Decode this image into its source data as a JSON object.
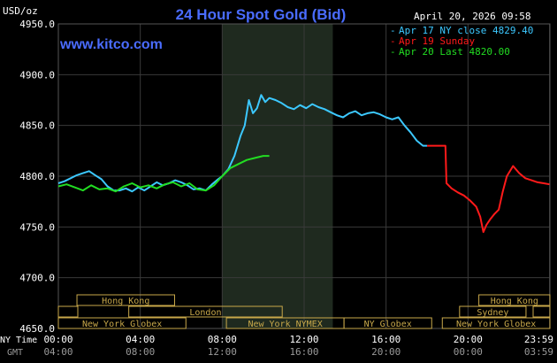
{
  "header": {
    "unit_label": "USD/oz",
    "title": "24 Hour Spot Gold (Bid)",
    "date_time": "April 20, 2026 09:58",
    "watermark": "www.kitco.com"
  },
  "legend": [
    {
      "text": "Apr 17 NY close 4829.40",
      "color": "#3cc8ff"
    },
    {
      "text": "Apr 19 Sunday",
      "color": "#ff1a1a"
    },
    {
      "text": "Apr 20 Last 4820.00",
      "color": "#22dd22"
    }
  ],
  "axis_row_labels": {
    "ny": "NY Time",
    "gmt": "GMT"
  },
  "sessions": [
    {
      "label": "Hong Kong",
      "start": 1.4,
      "end": 8.75
    },
    {
      "label": "London",
      "start": 5.3,
      "end": 16.85
    },
    {
      "label": "New York Globex",
      "start": 0.0,
      "end": 9.6
    },
    {
      "label": "New York NYMEX",
      "start": 12.65,
      "end": 21.5
    },
    {
      "label": "NY Globex",
      "start": 21.5,
      "end": 28.1
    },
    {
      "label": "Hong Kong",
      "start": 31.65,
      "end": 37.0
    },
    {
      "label": "Sydney",
      "start": 30.2,
      "end": 35.2
    },
    {
      "label": "New York Globex",
      "start": 28.9,
      "end": 37.0
    }
  ],
  "colors": {
    "background": "#000000",
    "highlight_band": "#1f2a1f",
    "title": "#4a6cff",
    "grid": "#3a3a3a",
    "session_box": "#c8a84a",
    "axis_text": "#ffffff",
    "gmt_text": "#9a9a9a"
  },
  "chart_data": {
    "type": "line",
    "title": "24 Hour Spot Gold (Bid)",
    "ylabel": "USD/oz",
    "ylim": [
      4650,
      4950
    ],
    "yticks": [
      "4950.0",
      "4900.0",
      "4850.0",
      "4800.0",
      "4750.0",
      "4700.0",
      "4650.0"
    ],
    "yticks_values": [
      4950,
      4900,
      4850,
      4800,
      4750,
      4700,
      4650
    ],
    "xlim": [
      0,
      24
    ],
    "xticks_ny": [
      "00:00",
      "04:00",
      "08:00",
      "12:00",
      "16:00",
      "20:00",
      "23:59"
    ],
    "xticks_gmt": [
      "04:00",
      "08:00",
      "12:00",
      "16:00",
      "20:00",
      "00:00",
      "03:59"
    ],
    "xticks_values": [
      0,
      4,
      8,
      12,
      16,
      20,
      23.983
    ],
    "highlight_x": [
      8,
      13.4
    ],
    "series": [
      {
        "name": "Apr 17 NY close 4829.40",
        "color": "#3cc8ff",
        "x": [
          0,
          0.3,
          0.6,
          0.9,
          1.2,
          1.5,
          1.8,
          2.1,
          2.4,
          2.7,
          3.0,
          3.3,
          3.6,
          3.9,
          4.2,
          4.5,
          4.8,
          5.1,
          5.4,
          5.7,
          6.0,
          6.3,
          6.6,
          6.9,
          7.2,
          7.5,
          7.8,
          8.0,
          8.3,
          8.6,
          8.9,
          9.1,
          9.3,
          9.5,
          9.7,
          9.9,
          10.1,
          10.3,
          10.6,
          10.9,
          11.2,
          11.5,
          11.8,
          12.1,
          12.4,
          12.7,
          13.0,
          13.3,
          13.6,
          13.9,
          14.2,
          14.5,
          14.8,
          15.1,
          15.4,
          15.7,
          16.0,
          16.3,
          16.6,
          16.9,
          17.2,
          17.5,
          17.8,
          18.0
        ],
        "y": [
          4793,
          4795,
          4798,
          4801,
          4803,
          4805,
          4801,
          4797,
          4790,
          4786,
          4786,
          4788,
          4785,
          4789,
          4786,
          4790,
          4794,
          4791,
          4793,
          4796,
          4794,
          4791,
          4787,
          4788,
          4786,
          4792,
          4797,
          4800,
          4807,
          4820,
          4840,
          4850,
          4875,
          4862,
          4867,
          4880,
          4873,
          4877,
          4875,
          4872,
          4868,
          4866,
          4870,
          4867,
          4871,
          4868,
          4866,
          4863,
          4860,
          4858,
          4862,
          4864,
          4860,
          4862,
          4863,
          4861,
          4858,
          4856,
          4858,
          4850,
          4843,
          4835,
          4830,
          4830
        ]
      },
      {
        "name": "Apr 19 Sunday",
        "color": "#ff1a1a",
        "x": [
          18.0,
          18.9,
          18.95,
          19.2,
          19.5,
          19.8,
          20.1,
          20.4,
          20.6,
          20.75,
          20.9,
          21.1,
          21.3,
          21.5,
          21.7,
          21.9,
          22.2,
          22.5,
          22.8,
          23.1,
          23.4,
          23.7,
          23.98
        ],
        "y": [
          4830,
          4830,
          4793,
          4788,
          4784,
          4781,
          4776,
          4770,
          4760,
          4745,
          4752,
          4758,
          4763,
          4767,
          4785,
          4800,
          4810,
          4803,
          4798,
          4796,
          4794,
          4793,
          4792
        ]
      },
      {
        "name": "Apr 20 Last 4820.00",
        "color": "#22dd22",
        "x": [
          0,
          0.4,
          0.8,
          1.2,
          1.6,
          2.0,
          2.4,
          2.8,
          3.2,
          3.6,
          4.0,
          4.4,
          4.8,
          5.2,
          5.6,
          6.0,
          6.4,
          6.8,
          7.2,
          7.6,
          8.0,
          8.4,
          8.8,
          9.2,
          9.6,
          10.0,
          10.3
        ],
        "y": [
          4790,
          4792,
          4789,
          4786,
          4791,
          4787,
          4788,
          4785,
          4790,
          4793,
          4789,
          4791,
          4788,
          4792,
          4794,
          4790,
          4793,
          4787,
          4786,
          4791,
          4800,
          4808,
          4812,
          4816,
          4818,
          4820,
          4820
        ]
      }
    ]
  }
}
